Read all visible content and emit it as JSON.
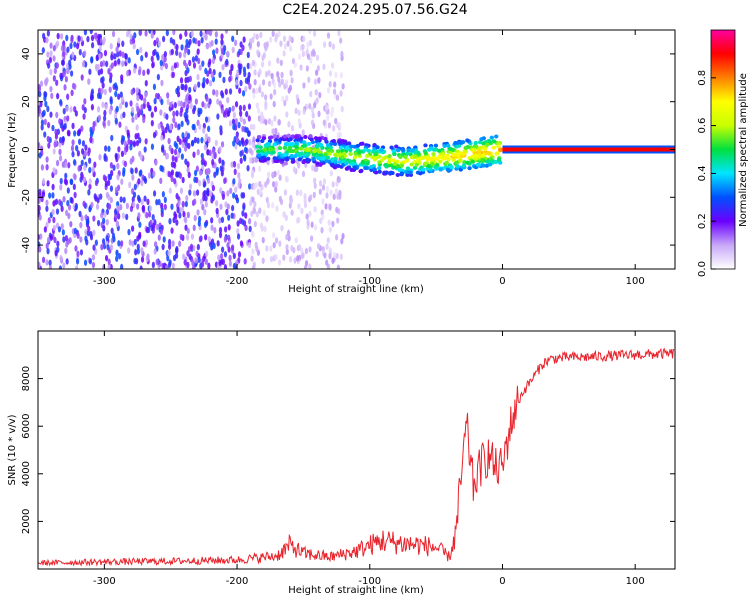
{
  "title": "C2E4.2024.295.07.56.G24",
  "chart_data": [
    {
      "type": "heatmap",
      "title": "C2E4.2024.295.07.56.G24",
      "xlabel": "Height of straight line (km)",
      "ylabel": "Frequency (Hz)",
      "xlim": [
        -350,
        130
      ],
      "ylim": [
        -50,
        50
      ],
      "xticks": [
        -300,
        -200,
        -100,
        0,
        100
      ],
      "yticks": [
        -40,
        -20,
        0,
        20,
        40
      ],
      "colorbar": {
        "label": "Normalized spectral amplitude",
        "range": [
          0,
          1
        ],
        "ticks": [
          0.0,
          0.2,
          0.4,
          0.6,
          0.8
        ],
        "colors": [
          "#ffffff",
          "#c8a8f8",
          "#6a00ff",
          "#0050ff",
          "#00e5ff",
          "#00e040",
          "#c8ff00",
          "#ffff00",
          "#ff8000",
          "#ff0000",
          "#ff00a0"
        ]
      },
      "regions": [
        {
          "name": "scattered noise",
          "x": [
            -350,
            -190
          ],
          "freq": [
            -50,
            50
          ],
          "amplitude": 0.2
        },
        {
          "name": "faint scatter",
          "x": [
            -190,
            -120
          ],
          "freq": [
            -50,
            50
          ],
          "amplitude": 0.08
        },
        {
          "name": "band",
          "x": [
            -185,
            0
          ],
          "freq_center": [
            0,
            0,
            -3,
            -5,
            -3,
            0
          ],
          "freq_halfwidth": 6,
          "amplitude": 0.45
        },
        {
          "name": "carrier line",
          "x": [
            0,
            130
          ],
          "freq": 0,
          "amplitude": 0.9
        }
      ]
    },
    {
      "type": "line",
      "xlabel": "Height of straight line (km)",
      "ylabel": "SNR (10 * v/v)",
      "xlim": [
        -350,
        130
      ],
      "ylim": [
        0,
        10000
      ],
      "xticks": [
        -300,
        -200,
        -100,
        0,
        100
      ],
      "yticks": [
        2000,
        4000,
        6000,
        8000
      ],
      "color": "#e8232b",
      "series": [
        {
          "x": [
            -350,
            -300,
            -250,
            -200,
            -170,
            -160,
            -150,
            -130,
            -110,
            -100,
            -90,
            -80,
            -70,
            -60,
            -50,
            -40,
            -35,
            -30,
            -27,
            -25,
            -22,
            -20,
            -15,
            -10,
            -5,
            0,
            5,
            10,
            15,
            20,
            25,
            30,
            35,
            40,
            50,
            60,
            80,
            100,
            130
          ],
          "y": [
            250,
            300,
            330,
            380,
            550,
            1000,
            650,
            500,
            750,
            1000,
            1200,
            1100,
            1050,
            1000,
            900,
            500,
            1500,
            4500,
            6000,
            5000,
            3500,
            3800,
            4500,
            4800,
            4200,
            4300,
            5800,
            6800,
            7400,
            7800,
            8200,
            8600,
            8800,
            8850,
            8900,
            8900,
            8950,
            9000,
            9050
          ]
        }
      ]
    }
  ]
}
